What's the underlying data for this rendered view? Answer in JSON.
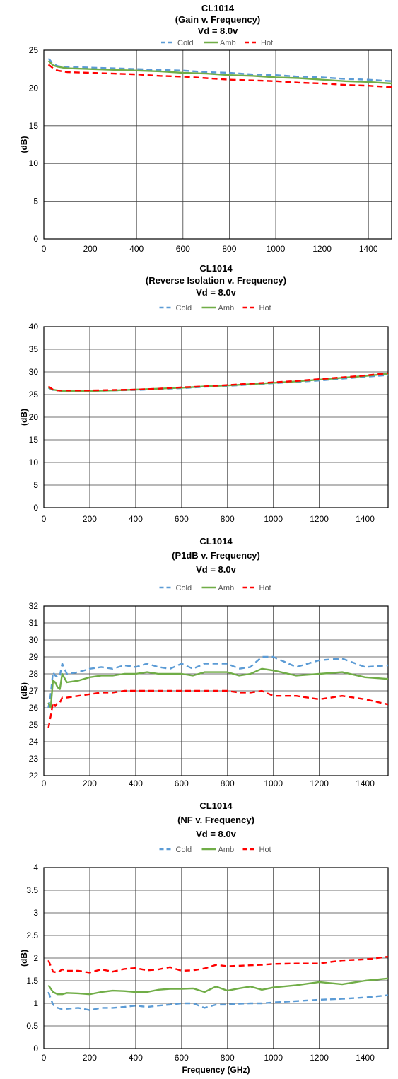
{
  "colors": {
    "cold": "#5b9bd5",
    "amb": "#70ad47",
    "hot": "#ff0000",
    "grid": "#404040"
  },
  "chart_data": [
    {
      "type": "line",
      "title": "CL1014",
      "subtitle": "(Gain v. Frequency)",
      "condition": "Vd = 8.0v",
      "xlabel": "",
      "ylabel": "(dB)",
      "xlim": [
        0,
        1500
      ],
      "ylim": [
        0,
        25
      ],
      "xticks": [
        "0",
        "200",
        "400",
        "600",
        "800",
        "1000",
        "1200",
        "1400"
      ],
      "yticks": [
        "0",
        "5",
        "10",
        "15",
        "20",
        "25"
      ],
      "legend_position": "top",
      "grid": true,
      "series": [
        {
          "name": "Cold",
          "style": "dashed",
          "color_key": "cold",
          "x": [
            20,
            40,
            60,
            80,
            100,
            200,
            300,
            400,
            500,
            600,
            700,
            800,
            900,
            1000,
            1100,
            1200,
            1300,
            1400,
            1500
          ],
          "y": [
            23.9,
            23.2,
            22.9,
            22.8,
            22.8,
            22.7,
            22.6,
            22.5,
            22.4,
            22.3,
            22.1,
            22.0,
            21.8,
            21.7,
            21.5,
            21.4,
            21.2,
            21.1,
            20.9
          ]
        },
        {
          "name": "Amb",
          "style": "solid",
          "color_key": "amb",
          "x": [
            20,
            40,
            60,
            80,
            100,
            200,
            300,
            400,
            500,
            600,
            700,
            800,
            900,
            1000,
            1100,
            1200,
            1300,
            1400,
            1500
          ],
          "y": [
            23.6,
            23.0,
            22.8,
            22.7,
            22.6,
            22.5,
            22.4,
            22.3,
            22.2,
            22.0,
            21.9,
            21.7,
            21.6,
            21.4,
            21.3,
            21.1,
            20.9,
            20.8,
            20.6
          ]
        },
        {
          "name": "Hot",
          "style": "dashed",
          "color_key": "hot",
          "x": [
            20,
            40,
            60,
            80,
            100,
            200,
            300,
            400,
            500,
            600,
            700,
            800,
            900,
            1000,
            1100,
            1200,
            1300,
            1400,
            1500
          ],
          "y": [
            23.1,
            22.6,
            22.3,
            22.2,
            22.1,
            22.0,
            21.9,
            21.8,
            21.6,
            21.5,
            21.3,
            21.1,
            21.0,
            20.9,
            20.7,
            20.6,
            20.4,
            20.3,
            20.1
          ]
        }
      ]
    },
    {
      "type": "line",
      "title": "CL1014",
      "subtitle": "(Reverse Isolation v. Frequency)",
      "condition": "Vd = 8.0v",
      "xlabel": "",
      "ylabel": "(dB)",
      "xlim": [
        0,
        1500
      ],
      "ylim": [
        0,
        40
      ],
      "xticks": [
        "0",
        "200",
        "400",
        "600",
        "800",
        "1000",
        "1200",
        "1400"
      ],
      "yticks": [
        "0",
        "5",
        "10",
        "15",
        "20",
        "25",
        "30",
        "35",
        "40"
      ],
      "legend_position": "top",
      "grid": true,
      "series": [
        {
          "name": "Cold",
          "style": "dashed",
          "color_key": "cold",
          "x": [
            20,
            40,
            60,
            80,
            100,
            200,
            300,
            400,
            500,
            600,
            700,
            800,
            900,
            1000,
            1100,
            1200,
            1300,
            1400,
            1500
          ],
          "y": [
            26.5,
            26.0,
            25.9,
            25.8,
            25.8,
            25.8,
            25.9,
            26.0,
            26.2,
            26.4,
            26.7,
            26.9,
            27.2,
            27.5,
            27.8,
            28.1,
            28.5,
            28.9,
            29.3
          ]
        },
        {
          "name": "Amb",
          "style": "solid",
          "color_key": "amb",
          "x": [
            20,
            40,
            60,
            80,
            100,
            200,
            300,
            400,
            500,
            600,
            700,
            800,
            900,
            1000,
            1100,
            1200,
            1300,
            1400,
            1500
          ],
          "y": [
            26.6,
            26.1,
            25.9,
            25.8,
            25.8,
            25.8,
            25.9,
            26.1,
            26.3,
            26.5,
            26.8,
            27.0,
            27.3,
            27.6,
            27.9,
            28.3,
            28.7,
            29.1,
            29.6
          ]
        },
        {
          "name": "Hot",
          "style": "dashed",
          "color_key": "hot",
          "x": [
            20,
            40,
            60,
            80,
            100,
            200,
            300,
            400,
            500,
            600,
            700,
            800,
            900,
            1000,
            1100,
            1200,
            1300,
            1400,
            1500
          ],
          "y": [
            26.8,
            26.1,
            25.9,
            25.9,
            25.9,
            25.9,
            26.0,
            26.1,
            26.3,
            26.6,
            26.8,
            27.1,
            27.4,
            27.7,
            28.0,
            28.4,
            28.8,
            29.2,
            29.7
          ]
        }
      ]
    },
    {
      "type": "line",
      "title": "CL1014",
      "subtitle": "(P1dB v. Frequency)",
      "condition": "Vd = 8.0v",
      "xlabel": "",
      "ylabel": "(dB)",
      "xlim": [
        0,
        1500
      ],
      "ylim": [
        22,
        32
      ],
      "xticks": [
        "0",
        "200",
        "400",
        "600",
        "800",
        "1000",
        "1200",
        "1400"
      ],
      "yticks": [
        "22",
        "23",
        "24",
        "25",
        "26",
        "27",
        "28",
        "29",
        "30",
        "31",
        "32"
      ],
      "legend_position": "top",
      "grid": true,
      "series": [
        {
          "name": "Cold",
          "style": "dashed",
          "color_key": "cold",
          "x": [
            20,
            30,
            40,
            50,
            60,
            70,
            80,
            100,
            150,
            200,
            250,
            300,
            350,
            400,
            450,
            500,
            550,
            600,
            650,
            700,
            750,
            800,
            850,
            900,
            950,
            1000,
            1100,
            1200,
            1300,
            1400,
            1500
          ],
          "y": [
            26.0,
            26.8,
            28.1,
            27.9,
            27.8,
            27.9,
            28.6,
            28.0,
            28.1,
            28.3,
            28.4,
            28.3,
            28.5,
            28.4,
            28.6,
            28.4,
            28.3,
            28.6,
            28.3,
            28.6,
            28.6,
            28.6,
            28.3,
            28.4,
            29.0,
            29.0,
            28.4,
            28.8,
            28.9,
            28.4,
            28.5
          ]
        },
        {
          "name": "Amb",
          "style": "solid",
          "color_key": "amb",
          "x": [
            20,
            30,
            40,
            50,
            60,
            70,
            80,
            100,
            150,
            200,
            250,
            300,
            350,
            400,
            450,
            500,
            550,
            600,
            650,
            700,
            750,
            800,
            850,
            900,
            950,
            1000,
            1100,
            1200,
            1300,
            1400,
            1500
          ],
          "y": [
            26.3,
            26.0,
            27.6,
            27.5,
            27.2,
            27.1,
            28.0,
            27.5,
            27.6,
            27.8,
            27.9,
            27.9,
            28.0,
            28.0,
            28.1,
            28.0,
            28.0,
            28.0,
            27.9,
            28.1,
            28.1,
            28.1,
            27.9,
            28.0,
            28.3,
            28.2,
            27.9,
            28.0,
            28.1,
            27.8,
            27.7
          ]
        },
        {
          "name": "Hot",
          "style": "dashed",
          "color_key": "hot",
          "x": [
            20,
            30,
            40,
            50,
            60,
            70,
            80,
            100,
            150,
            200,
            250,
            300,
            350,
            400,
            450,
            500,
            550,
            600,
            650,
            700,
            750,
            800,
            850,
            900,
            950,
            1000,
            1100,
            1200,
            1300,
            1400,
            1500
          ],
          "y": [
            24.8,
            25.5,
            26.3,
            26.1,
            26.3,
            26.3,
            26.6,
            26.6,
            26.7,
            26.8,
            26.9,
            26.9,
            27.0,
            27.0,
            27.0,
            27.0,
            27.0,
            27.0,
            27.0,
            27.0,
            27.0,
            27.0,
            26.9,
            26.9,
            27.0,
            26.7,
            26.7,
            26.5,
            26.7,
            26.5,
            26.2
          ]
        }
      ]
    },
    {
      "type": "line",
      "title": "CL1014",
      "subtitle": "(NF v. Frequency)",
      "condition": "Vd = 8.0v",
      "xlabel": "Frequency (GHz)",
      "ylabel": "(dB)",
      "xlim": [
        0,
        1500
      ],
      "ylim": [
        0,
        4
      ],
      "xticks": [
        "0",
        "200",
        "400",
        "600",
        "800",
        "1000",
        "1200",
        "1400"
      ],
      "yticks": [
        "0",
        "0.5",
        "1",
        "1.5",
        "2",
        "2.5",
        "3",
        "3.5",
        "4"
      ],
      "legend_position": "top",
      "grid": true,
      "series": [
        {
          "name": "Cold",
          "style": "dashed",
          "color_key": "cold",
          "x": [
            20,
            40,
            60,
            80,
            100,
            150,
            200,
            250,
            300,
            350,
            400,
            450,
            500,
            550,
            600,
            650,
            700,
            750,
            800,
            850,
            900,
            950,
            1000,
            1100,
            1200,
            1300,
            1400,
            1500
          ],
          "y": [
            1.25,
            0.97,
            0.9,
            0.87,
            0.88,
            0.9,
            0.85,
            0.9,
            0.9,
            0.92,
            0.95,
            0.92,
            0.95,
            0.97,
            1.0,
            1.0,
            0.9,
            0.97,
            0.97,
            0.99,
            1.0,
            1.0,
            1.02,
            1.05,
            1.08,
            1.1,
            1.13,
            1.18
          ]
        },
        {
          "name": "Amb",
          "style": "solid",
          "color_key": "amb",
          "x": [
            20,
            40,
            60,
            80,
            100,
            150,
            200,
            250,
            300,
            350,
            400,
            450,
            500,
            550,
            600,
            650,
            700,
            750,
            800,
            850,
            900,
            950,
            1000,
            1100,
            1200,
            1300,
            1400,
            1500
          ],
          "y": [
            1.4,
            1.25,
            1.2,
            1.2,
            1.23,
            1.22,
            1.2,
            1.25,
            1.28,
            1.27,
            1.25,
            1.25,
            1.3,
            1.32,
            1.32,
            1.33,
            1.25,
            1.37,
            1.28,
            1.33,
            1.37,
            1.3,
            1.35,
            1.4,
            1.47,
            1.42,
            1.5,
            1.55
          ]
        },
        {
          "name": "Hot",
          "style": "dashed",
          "color_key": "hot",
          "x": [
            20,
            40,
            60,
            80,
            100,
            150,
            200,
            250,
            300,
            350,
            400,
            450,
            500,
            550,
            600,
            650,
            700,
            750,
            800,
            850,
            900,
            950,
            1000,
            1100,
            1200,
            1300,
            1400,
            1500
          ],
          "y": [
            1.95,
            1.7,
            1.68,
            1.75,
            1.72,
            1.72,
            1.68,
            1.75,
            1.7,
            1.76,
            1.78,
            1.73,
            1.75,
            1.8,
            1.72,
            1.73,
            1.77,
            1.85,
            1.82,
            1.83,
            1.84,
            1.85,
            1.87,
            1.88,
            1.88,
            1.95,
            1.97,
            2.03
          ]
        }
      ]
    }
  ]
}
